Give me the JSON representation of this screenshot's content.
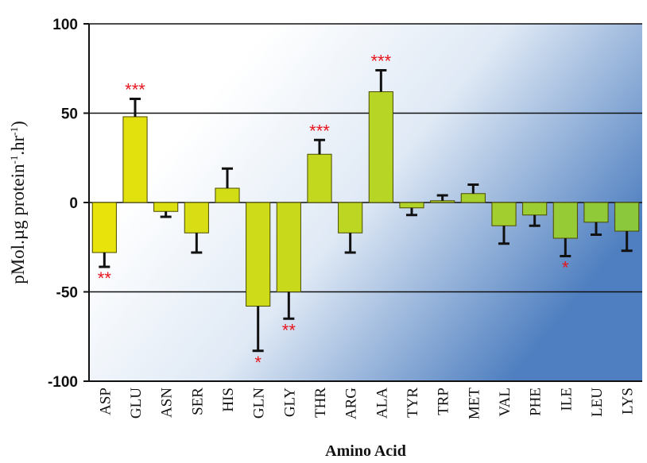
{
  "chart_data": {
    "type": "bar",
    "title": "",
    "xlabel": "Amino Acid",
    "ylabel_main": "pMol.µg protein",
    "ylabel_sup1": "-1",
    "ylabel_mid": ".hr",
    "ylabel_sup2": "-1",
    "ylabel_close": ")",
    "ylim": [
      -100,
      100
    ],
    "yticks": [
      100,
      50,
      0,
      -50,
      -100
    ],
    "grid": true,
    "legend": "none",
    "categories": [
      "ASP",
      "GLU",
      "ASN",
      "SER",
      "HIS",
      "GLN",
      "GLY",
      "THR",
      "ARG",
      "ALA",
      "TYR",
      "TRP",
      "MET",
      "VAL",
      "PHE",
      "ILE",
      "LEU",
      "LYS"
    ],
    "values": [
      -28,
      48,
      -5,
      -17,
      8,
      -58,
      -50,
      27,
      -17,
      62,
      -3,
      1,
      5,
      -13,
      -7,
      -20,
      -11,
      -16
    ],
    "error": [
      8,
      10,
      3,
      11,
      11,
      25,
      15,
      8,
      11,
      12,
      4,
      3,
      5,
      10,
      6,
      10,
      7,
      11
    ],
    "significance": [
      "**",
      "***",
      "",
      "",
      "",
      "*",
      "**",
      "***",
      "",
      "***",
      "",
      "",
      "",
      "",
      "",
      "*",
      "",
      ""
    ],
    "colors": {
      "bar_left": "#e8e30a",
      "bar_right": "#8cc83c",
      "bar_stroke": "#4a4a00",
      "error_bar": "#111111",
      "significance": "#e8141c",
      "background_light": "#ffffff",
      "background_dark": "#4f7fc0"
    }
  }
}
